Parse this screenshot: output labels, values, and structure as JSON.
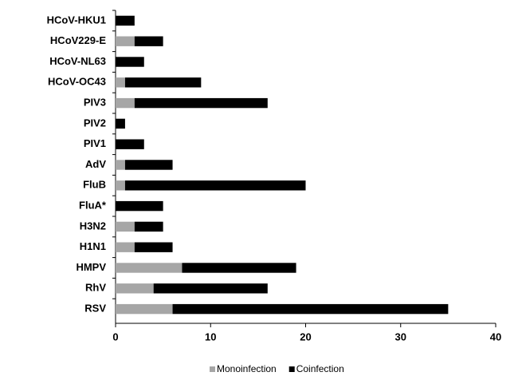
{
  "chart_data": {
    "type": "stacked-barh",
    "categories": [
      "HCoV-HKU1",
      "HCoV229-E",
      "HCoV-NL63",
      "HCoV-OC43",
      "PIV3",
      "PIV2",
      "PIV1",
      "AdV",
      "FluB",
      "FluA*",
      "H3N2",
      "H1N1",
      "HMPV",
      "RhV",
      "RSV"
    ],
    "series": [
      {
        "name": "Monoinfection",
        "color": "#a6a6a6",
        "values": [
          0,
          2,
          0,
          1,
          2,
          0,
          0,
          1,
          1,
          0,
          2,
          2,
          7,
          4,
          6
        ]
      },
      {
        "name": "Coinfection",
        "color": "#000000",
        "values": [
          2,
          3,
          3,
          8,
          14,
          1,
          3,
          5,
          19,
          5,
          3,
          4,
          12,
          12,
          29
        ]
      }
    ],
    "xlim": [
      0,
      40
    ],
    "xticks": [
      0,
      10,
      20,
      30,
      40
    ],
    "legend": "bottom"
  }
}
